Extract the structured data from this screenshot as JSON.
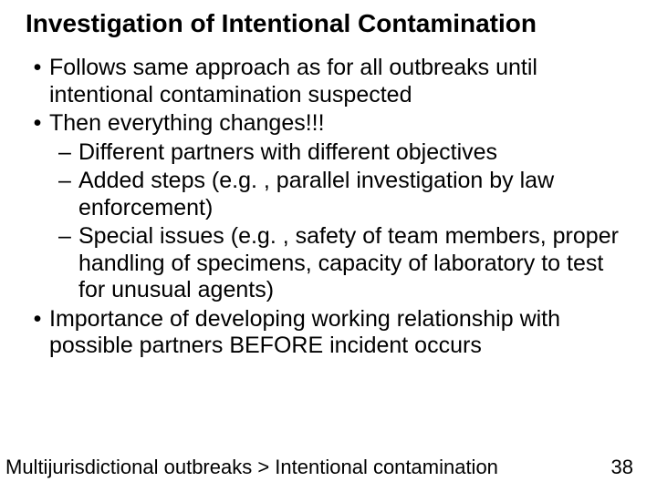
{
  "title": {
    "text": "Investigation of Intentional Contamination",
    "fontsize": 28,
    "color": "#000000",
    "weight": 700
  },
  "body": {
    "fontsize": 25,
    "color": "#000000",
    "lineheight": 1.18
  },
  "bullets": [
    {
      "level": 1,
      "text": "Follows same approach as for all outbreaks until intentional contamination suspected"
    },
    {
      "level": 1,
      "text": "Then everything changes!!!"
    },
    {
      "level": 2,
      "text": "Different partners with different objectives"
    },
    {
      "level": 2,
      "text": "Added steps (e.g. , parallel investigation by law enforcement)"
    },
    {
      "level": 2,
      "text": "Special issues (e.g. , safety of team members, proper handling of specimens, capacity of laboratory to test for unusual agents)"
    },
    {
      "level": 1,
      "text": "Importance of developing working relationship with possible partners BEFORE incident occurs"
    }
  ],
  "footer": {
    "breadcrumb": "Multijurisdictional outbreaks > Intentional contamination",
    "page": "38",
    "fontsize": 22,
    "color": "#000000"
  },
  "glyphs": {
    "bullet": "•",
    "dash": "–"
  },
  "background_color": "#ffffff"
}
